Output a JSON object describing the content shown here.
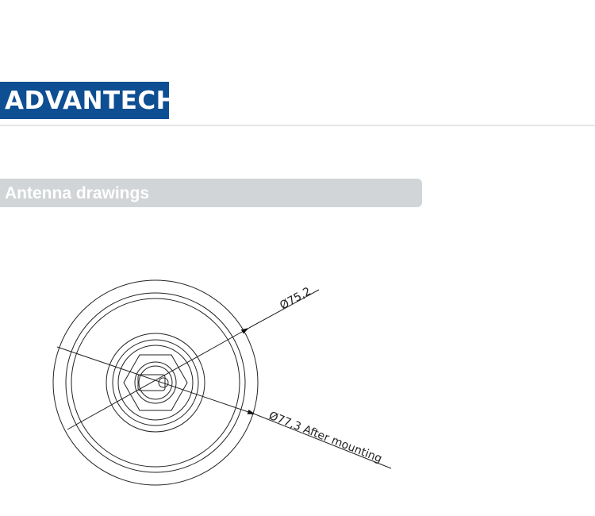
{
  "header": {
    "logo_text": "ADVANTECH",
    "brand_color": "#0e4e92"
  },
  "section": {
    "title": "Antenna drawings",
    "bar_color": "#d2d5d7"
  },
  "drawing": {
    "view": "top view",
    "dimensions": [
      {
        "label": "Ø75,2"
      },
      {
        "label": "Ø77,3 After mounting"
      }
    ]
  }
}
